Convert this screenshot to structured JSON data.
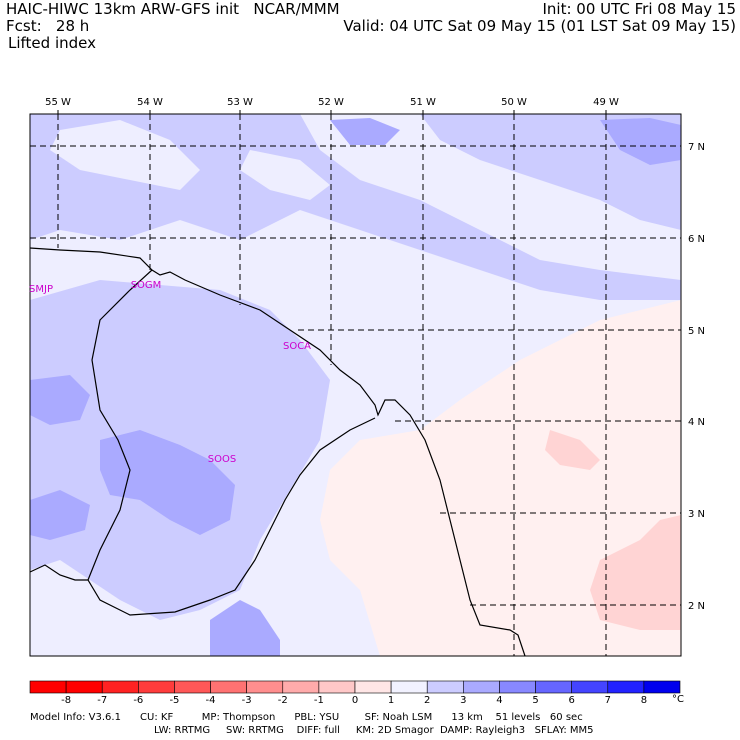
{
  "header": {
    "title": "HAIC-HIWC 13km ARW-GFS init   NCAR/MMM",
    "fcst": "Fcst:   28 h",
    "field": "Lifted index",
    "init": "Init: 00 UTC Fri 08 May 15",
    "valid": "Valid: 04 UTC Sat 09 May 15 (01 LST Sat 09 May 15)"
  },
  "map": {
    "lon_labels": [
      "55 W",
      "54 W",
      "53 W",
      "52 W",
      "51 W",
      "50 W",
      "49 W"
    ],
    "lat_labels": [
      "7 N",
      "6 N",
      "5 N",
      "4 N",
      "3 N",
      "2 N"
    ],
    "stations": [
      {
        "id": "SMJP"
      },
      {
        "id": "SOGM"
      },
      {
        "id": "SOCA"
      },
      {
        "id": "SOOS"
      }
    ],
    "station_color": "#cc00cc"
  },
  "colorbar": {
    "ticks": [
      "-8",
      "-7",
      "-6",
      "-5",
      "-4",
      "-3",
      "-2",
      "-1",
      "0",
      "1",
      "2",
      "3",
      "4",
      "5",
      "6",
      "7",
      "8"
    ],
    "unit": "°C",
    "colors": [
      "#ff0000",
      "#ff2222",
      "#ff3c3c",
      "#ff5757",
      "#ff7272",
      "#ff8e8e",
      "#ffabab",
      "#ffc8c8",
      "#ffe6e6",
      "#f2f2ff",
      "#ccccff",
      "#aaaaff",
      "#8888ff",
      "#6666ff",
      "#4444ff",
      "#2222ff",
      "#0000ee"
    ]
  },
  "model_info": {
    "line1": "Model Info: V3.6.1      CU: KF         MP: Thompson      PBL: YSU        SF: Noah LSM      13 km    51 levels   60 sec",
    "line2": "LW: RRTMG     SW: RRTMG    DIFF: full     KM: 2D Smagor  DAMP: Rayleigh3   SFLAY: MM5"
  }
}
